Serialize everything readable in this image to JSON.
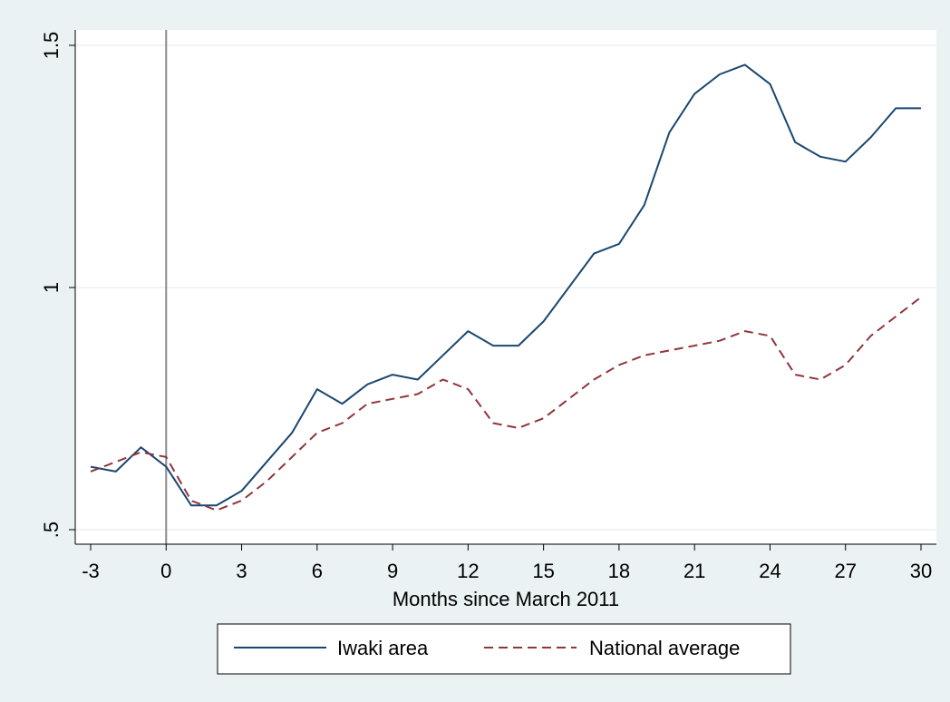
{
  "colors": {
    "background": "#eaf2f3",
    "plot_background": "#ffffff",
    "grid": "#eaf2f3",
    "event_line": "#8a8a8a",
    "iwaki": "#1a476f",
    "national": "#90353b"
  },
  "chart_data": {
    "type": "line",
    "title": "",
    "xlabel": "Months since March 2011",
    "ylabel": "",
    "xlim": [
      -3,
      30
    ],
    "ylim": [
      0.5,
      1.5
    ],
    "x_ticks": [
      -3,
      0,
      3,
      6,
      9,
      12,
      15,
      18,
      21,
      24,
      27,
      30
    ],
    "x_tick_labels": [
      "-3",
      "0",
      "3",
      "6",
      "9",
      "12",
      "15",
      "18",
      "21",
      "24",
      "27",
      "30"
    ],
    "y_ticks": [
      0.5,
      1,
      1.5
    ],
    "y_tick_labels": [
      ".5",
      "1",
      "1.5"
    ],
    "grid": true,
    "legend_position": "bottom",
    "vertical_reference_line": 0,
    "x": [
      -3,
      -2,
      -1,
      0,
      1,
      2,
      3,
      4,
      5,
      6,
      7,
      8,
      9,
      10,
      11,
      12,
      13,
      14,
      15,
      16,
      17,
      18,
      19,
      20,
      21,
      22,
      23,
      24,
      25,
      26,
      27,
      28,
      29,
      30
    ],
    "series": [
      {
        "name": "Iwaki area",
        "style": "solid",
        "values": [
          0.63,
          0.62,
          0.67,
          0.63,
          0.55,
          0.55,
          0.58,
          0.64,
          0.7,
          0.79,
          0.76,
          0.8,
          0.82,
          0.81,
          0.86,
          0.91,
          0.88,
          0.88,
          0.93,
          1.0,
          1.07,
          1.09,
          1.17,
          1.32,
          1.4,
          1.44,
          1.46,
          1.42,
          1.3,
          1.27,
          1.26,
          1.31,
          1.37,
          1.37
        ]
      },
      {
        "name": "National average",
        "style": "dashed",
        "values": [
          0.62,
          0.64,
          0.66,
          0.65,
          0.56,
          0.54,
          0.56,
          0.6,
          0.65,
          0.7,
          0.72,
          0.76,
          0.77,
          0.78,
          0.81,
          0.79,
          0.72,
          0.71,
          0.73,
          0.77,
          0.81,
          0.84,
          0.86,
          0.87,
          0.88,
          0.89,
          0.91,
          0.9,
          0.82,
          0.81,
          0.84,
          0.9,
          0.94,
          0.98
        ]
      }
    ]
  }
}
